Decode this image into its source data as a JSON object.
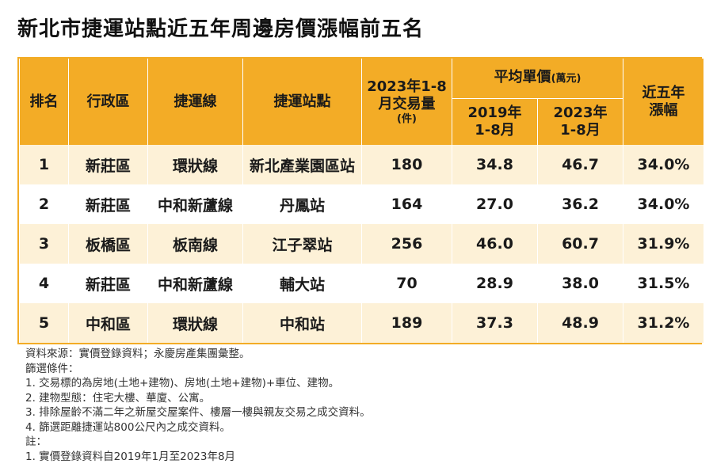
{
  "title": "新北市捷運站點近五年周邊房價漲幅前五名",
  "header": {
    "rank": "排名",
    "district": "行政區",
    "line": "捷運線",
    "station": "捷運站點",
    "volume_line1": "2023年1-8",
    "volume_line2": "月交易量",
    "volume_unit": "(件)",
    "avg_price": "平均單價",
    "avg_price_unit": "(萬元)",
    "y2019_line1": "2019年",
    "y2019_line2": "1-8月",
    "y2023_line1": "2023年",
    "y2023_line2": "1-8月",
    "growth_line1": "近五年",
    "growth_line2": "漲幅"
  },
  "rows": [
    {
      "rank": "1",
      "district": "新莊區",
      "line": "環狀線",
      "station": "新北產業園區站",
      "volume": "180",
      "price_2019": "34.8",
      "price_2023": "46.7",
      "growth": "34.0%"
    },
    {
      "rank": "2",
      "district": "新莊區",
      "line": "中和新蘆線",
      "station": "丹鳳站",
      "volume": "164",
      "price_2019": "27.0",
      "price_2023": "36.2",
      "growth": "34.0%"
    },
    {
      "rank": "3",
      "district": "板橋區",
      "line": "板南線",
      "station": "江子翠站",
      "volume": "256",
      "price_2019": "46.0",
      "price_2023": "60.7",
      "growth": "31.9%"
    },
    {
      "rank": "4",
      "district": "新莊區",
      "line": "中和新蘆線",
      "station": "輔大站",
      "volume": "70",
      "price_2019": "28.9",
      "price_2023": "38.0",
      "growth": "31.5%"
    },
    {
      "rank": "5",
      "district": "中和區",
      "line": "環狀線",
      "station": "中和站",
      "volume": "189",
      "price_2019": "37.3",
      "price_2023": "48.9",
      "growth": "31.2%"
    }
  ],
  "notes": [
    "資料來源：實價登錄資料；永慶房產集團彙整。",
    "篩選條件：",
    "1. 交易標的為房地(土地+建物)、房地(土地+建物)+車位、建物。",
    "2. 建物型態：住宅大樓、華廈、公寓。",
    "3. 排除屋齡不滿二年之新屋交屋案件、樓層一樓與親友交易之成交資料。",
    "4. 篩選距離捷運站800公尺內之成交資料。",
    "註：",
    "1. 實價登錄資料自2019年1月至2023年8月"
  ],
  "colors": {
    "header_bg": "#f3ac26",
    "row_alt_bg": "#fdf1d7",
    "row_bg": "#ffffff"
  }
}
